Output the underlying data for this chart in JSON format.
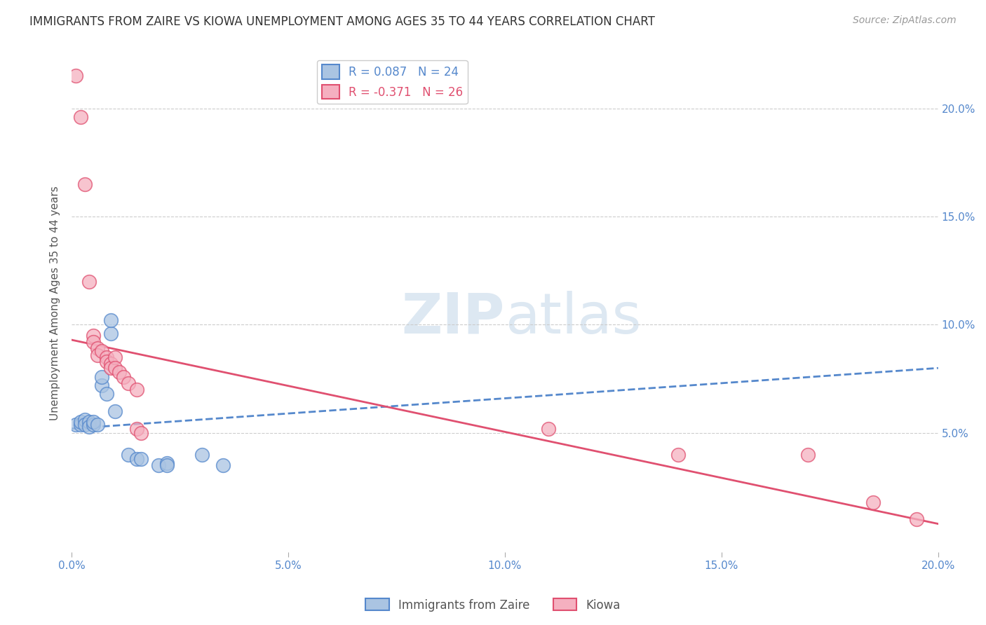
{
  "title": "IMMIGRANTS FROM ZAIRE VS KIOWA UNEMPLOYMENT AMONG AGES 35 TO 44 YEARS CORRELATION CHART",
  "source": "Source: ZipAtlas.com",
  "ylabel": "Unemployment Among Ages 35 to 44 years",
  "xlim": [
    0.0,
    0.2
  ],
  "ylim": [
    -0.005,
    0.225
  ],
  "xticks": [
    0.0,
    0.05,
    0.1,
    0.15,
    0.2
  ],
  "yticks": [
    0.05,
    0.1,
    0.15,
    0.2
  ],
  "xtick_labels": [
    "0.0%",
    "5.0%",
    "10.0%",
    "15.0%",
    "20.0%"
  ],
  "ytick_labels": [
    "5.0%",
    "10.0%",
    "15.0%",
    "20.0%"
  ],
  "legend_label1": "Immigrants from Zaire",
  "legend_label2": "Kiowa",
  "R1": 0.087,
  "N1": 24,
  "R2": -0.371,
  "N2": 26,
  "color_blue": "#aac4e2",
  "color_pink": "#f5b0c0",
  "line_blue": "#5588cc",
  "line_pink": "#e05070",
  "watermark_color": "#dde8f2",
  "blue_points": [
    [
      0.001,
      0.054
    ],
    [
      0.002,
      0.054
    ],
    [
      0.002,
      0.055
    ],
    [
      0.003,
      0.056
    ],
    [
      0.003,
      0.054
    ],
    [
      0.004,
      0.055
    ],
    [
      0.004,
      0.053
    ],
    [
      0.005,
      0.054
    ],
    [
      0.005,
      0.055
    ],
    [
      0.006,
      0.054
    ],
    [
      0.007,
      0.072
    ],
    [
      0.007,
      0.076
    ],
    [
      0.008,
      0.068
    ],
    [
      0.009,
      0.096
    ],
    [
      0.009,
      0.102
    ],
    [
      0.01,
      0.06
    ],
    [
      0.013,
      0.04
    ],
    [
      0.015,
      0.038
    ],
    [
      0.016,
      0.038
    ],
    [
      0.02,
      0.035
    ],
    [
      0.022,
      0.036
    ],
    [
      0.022,
      0.035
    ],
    [
      0.03,
      0.04
    ],
    [
      0.035,
      0.035
    ]
  ],
  "pink_points": [
    [
      0.001,
      0.215
    ],
    [
      0.002,
      0.196
    ],
    [
      0.003,
      0.165
    ],
    [
      0.004,
      0.12
    ],
    [
      0.005,
      0.095
    ],
    [
      0.005,
      0.092
    ],
    [
      0.006,
      0.089
    ],
    [
      0.006,
      0.086
    ],
    [
      0.007,
      0.088
    ],
    [
      0.008,
      0.085
    ],
    [
      0.008,
      0.083
    ],
    [
      0.009,
      0.082
    ],
    [
      0.009,
      0.08
    ],
    [
      0.01,
      0.085
    ],
    [
      0.01,
      0.08
    ],
    [
      0.011,
      0.078
    ],
    [
      0.012,
      0.076
    ],
    [
      0.013,
      0.073
    ],
    [
      0.015,
      0.07
    ],
    [
      0.015,
      0.052
    ],
    [
      0.016,
      0.05
    ],
    [
      0.11,
      0.052
    ],
    [
      0.14,
      0.04
    ],
    [
      0.17,
      0.04
    ],
    [
      0.185,
      0.018
    ],
    [
      0.195,
      0.01
    ]
  ]
}
